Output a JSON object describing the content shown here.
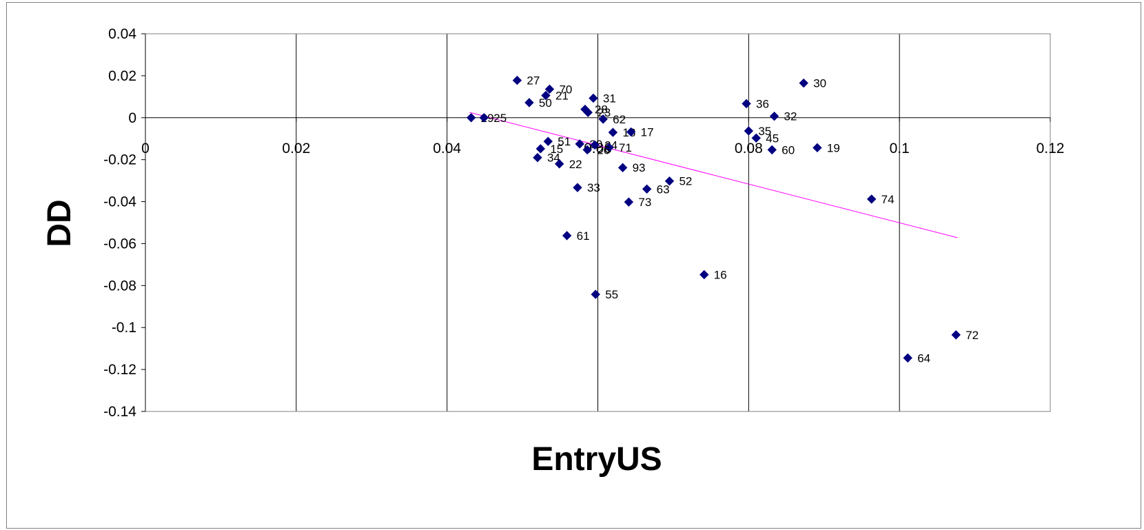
{
  "chart_data": {
    "type": "scatter",
    "title": "",
    "xlabel": "EntryUS",
    "ylabel": "DD",
    "xlim": [
      0,
      0.12
    ],
    "ylim": [
      -0.14,
      0.04
    ],
    "xticks": [
      "0",
      "0.02",
      "0.04",
      "0.06",
      "0.08",
      "0.1",
      "0.12"
    ],
    "yticks": [
      "0.04",
      "0.02",
      "0",
      "-0.02",
      "-0.04",
      "-0.06",
      "-0.08",
      "-0.1",
      "-0.12",
      "-0.14"
    ],
    "grid": "vertical gridlines at major x ticks",
    "legend": "none",
    "marker": "diamond",
    "marker_color": "#000080",
    "trendline_color": "#ff00ff",
    "trendline": {
      "x": [
        0.043,
        0.1077
      ],
      "y": [
        0.0025,
        -0.0572
      ]
    },
    "points": [
      {
        "label": "27",
        "x": 0.0493,
        "y": 0.0178
      },
      {
        "label": "70",
        "x": 0.0536,
        "y": 0.0136
      },
      {
        "label": "21",
        "x": 0.0531,
        "y": 0.0106
      },
      {
        "label": "50",
        "x": 0.0509,
        "y": 0.0072
      },
      {
        "label": "31",
        "x": 0.0594,
        "y": 0.0093
      },
      {
        "label": "28",
        "x": 0.0583,
        "y": 0.004
      },
      {
        "label": "23",
        "x": 0.0587,
        "y": 0.0025
      },
      {
        "label": "62",
        "x": 0.0607,
        "y": -0.0007
      },
      {
        "label": "29",
        "x": 0.0432,
        "y": 0.0
      },
      {
        "label": "25",
        "x": 0.0449,
        "y": 0.0
      },
      {
        "label": "18",
        "x": 0.062,
        "y": -0.007
      },
      {
        "label": "17",
        "x": 0.0644,
        "y": -0.0068
      },
      {
        "label": "20",
        "x": 0.0576,
        "y": -0.0125
      },
      {
        "label": "24",
        "x": 0.0596,
        "y": -0.013
      },
      {
        "label": "71",
        "x": 0.0615,
        "y": -0.0142
      },
      {
        "label": "26",
        "x": 0.0586,
        "y": -0.0153
      },
      {
        "label": "51",
        "x": 0.0534,
        "y": -0.0113
      },
      {
        "label": "15",
        "x": 0.0524,
        "y": -0.0148
      },
      {
        "label": "34",
        "x": 0.052,
        "y": -0.019
      },
      {
        "label": "22",
        "x": 0.0549,
        "y": -0.022
      },
      {
        "label": "93",
        "x": 0.0633,
        "y": -0.0238
      },
      {
        "label": "33",
        "x": 0.0573,
        "y": -0.0333
      },
      {
        "label": "63",
        "x": 0.0665,
        "y": -0.034
      },
      {
        "label": "52",
        "x": 0.0695,
        "y": -0.0302
      },
      {
        "label": "73",
        "x": 0.0641,
        "y": -0.0402
      },
      {
        "label": "61",
        "x": 0.0559,
        "y": -0.0562
      },
      {
        "label": "55",
        "x": 0.0597,
        "y": -0.0842
      },
      {
        "label": "16",
        "x": 0.0741,
        "y": -0.0748
      },
      {
        "label": "36",
        "x": 0.0797,
        "y": 0.0067
      },
      {
        "label": "35",
        "x": 0.08,
        "y": -0.0063
      },
      {
        "label": "45",
        "x": 0.081,
        "y": -0.0097
      },
      {
        "label": "60",
        "x": 0.0831,
        "y": -0.0153
      },
      {
        "label": "32",
        "x": 0.0834,
        "y": 0.0007
      },
      {
        "label": "30",
        "x": 0.0873,
        "y": 0.0165
      },
      {
        "label": "19",
        "x": 0.0891,
        "y": -0.0143
      },
      {
        "label": "74",
        "x": 0.0963,
        "y": -0.0388
      },
      {
        "label": "72",
        "x": 0.1075,
        "y": -0.1035
      },
      {
        "label": "64",
        "x": 0.1011,
        "y": -0.1145
      }
    ]
  }
}
